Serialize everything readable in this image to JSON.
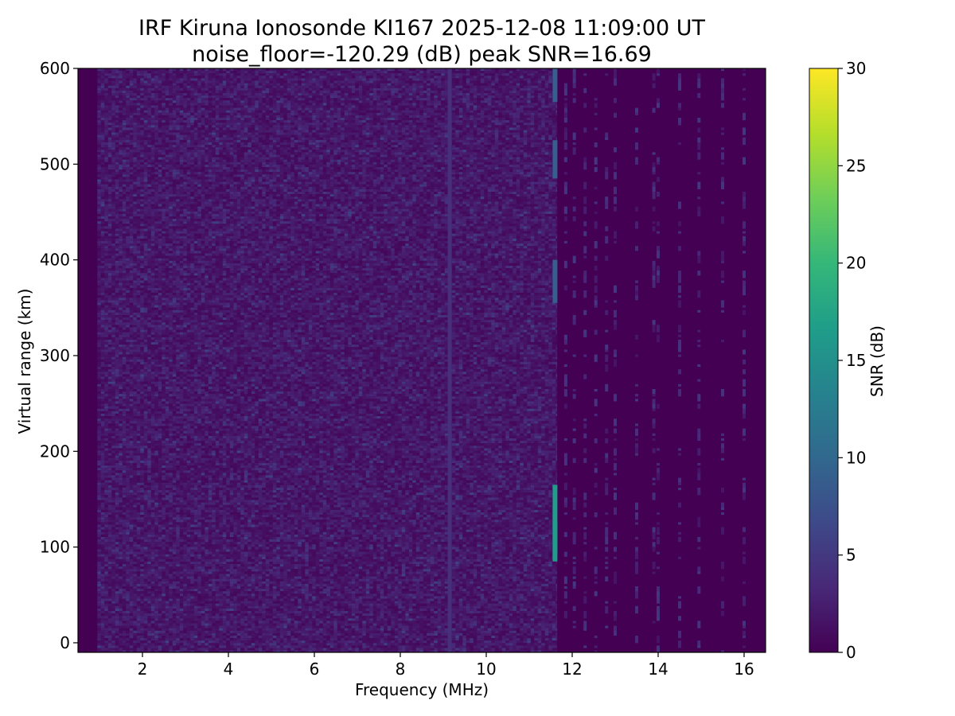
{
  "chart_data": {
    "type": "heatmap",
    "title_line1": "IRF Kiruna Ionosonde KI167 2025-12-08 11:09:00  UT",
    "title_line2": "noise_floor=-120.29 (dB) peak SNR=16.69",
    "xlabel": "Frequency (MHz)",
    "ylabel": "Virtual range (km)",
    "xlim": [
      0.5,
      16.5
    ],
    "ylim": [
      -10,
      600
    ],
    "x_ticks": [
      2,
      4,
      6,
      8,
      10,
      12,
      14,
      16
    ],
    "y_ticks": [
      0,
      100,
      200,
      300,
      400,
      500,
      600
    ],
    "colorbar": {
      "label": "SNR (dB)",
      "range": [
        0,
        30
      ],
      "ticks": [
        0,
        5,
        10,
        15,
        20,
        25,
        30
      ],
      "colormap": "viridis"
    },
    "colormap_colors": [
      "#440154",
      "#482878",
      "#3e4989",
      "#31688e",
      "#26828e",
      "#1f9e89",
      "#35b779",
      "#6ece58",
      "#b5de2b",
      "#fde725"
    ],
    "grid": false,
    "features": [
      {
        "name": "persistent-interference-line",
        "freq_mhz": 9.15,
        "range_km": [
          -10,
          600
        ],
        "snr_db": 4
      },
      {
        "name": "strong-interference-line",
        "freq_mhz": 11.6,
        "range_km": [
          85,
          165
        ],
        "snr_db": 16.69
      },
      {
        "name": "strong-interference-line",
        "freq_mhz": 11.6,
        "range_km": [
          355,
          400
        ],
        "snr_db": 9
      },
      {
        "name": "strong-interference-line",
        "freq_mhz": 11.6,
        "range_km": [
          485,
          525
        ],
        "snr_db": 9
      },
      {
        "name": "strong-interference-line",
        "freq_mhz": 11.6,
        "range_km": [
          565,
          600
        ],
        "snr_db": 9
      }
    ],
    "noise_band_mhz": [
      0.95,
      11.65
    ],
    "sparse_columns_mhz": [
      11.85,
      12.05,
      12.3,
      12.55,
      12.8,
      13.0,
      13.5,
      13.9,
      14.0,
      14.5,
      14.95,
      15.5,
      16.0
    ]
  }
}
